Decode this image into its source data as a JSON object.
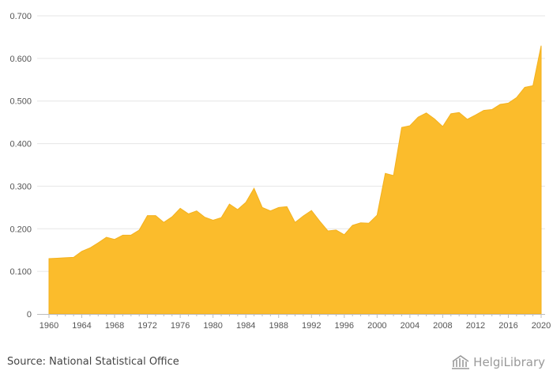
{
  "chart_data": {
    "type": "area",
    "color": "#FBBC2C",
    "ylim": [
      0,
      0.7
    ],
    "y_ticks": [
      "0",
      "0.100",
      "0.200",
      "0.300",
      "0.400",
      "0.500",
      "0.600",
      "0.700"
    ],
    "y_tick_values": [
      0,
      0.1,
      0.2,
      0.3,
      0.4,
      0.5,
      0.6,
      0.7
    ],
    "x_ticks": [
      "1960",
      "1964",
      "1968",
      "1972",
      "1976",
      "1980",
      "1984",
      "1988",
      "1992",
      "1996",
      "2000",
      "2004",
      "2008",
      "2012",
      "2016",
      "2020"
    ],
    "x": [
      1960,
      1961,
      1962,
      1963,
      1964,
      1965,
      1966,
      1967,
      1968,
      1969,
      1970,
      1971,
      1972,
      1973,
      1974,
      1975,
      1976,
      1977,
      1978,
      1979,
      1980,
      1981,
      1982,
      1983,
      1984,
      1985,
      1986,
      1987,
      1988,
      1989,
      1990,
      1991,
      1992,
      1993,
      1994,
      1995,
      1996,
      1997,
      1998,
      1999,
      2000,
      2001,
      2002,
      2003,
      2004,
      2005,
      2006,
      2007,
      2008,
      2009,
      2010,
      2011,
      2012,
      2013,
      2014,
      2015,
      2016,
      2017,
      2018,
      2019,
      2020
    ],
    "values": [
      0.13,
      0.131,
      0.132,
      0.133,
      0.147,
      0.155,
      0.167,
      0.18,
      0.175,
      0.185,
      0.185,
      0.197,
      0.231,
      0.231,
      0.215,
      0.228,
      0.248,
      0.235,
      0.242,
      0.227,
      0.22,
      0.226,
      0.258,
      0.245,
      0.262,
      0.295,
      0.25,
      0.242,
      0.25,
      0.252,
      0.215,
      0.23,
      0.243,
      0.218,
      0.195,
      0.197,
      0.186,
      0.208,
      0.214,
      0.213,
      0.232,
      0.33,
      0.325,
      0.438,
      0.442,
      0.462,
      0.472,
      0.458,
      0.44,
      0.47,
      0.473,
      0.457,
      0.467,
      0.478,
      0.48,
      0.492,
      0.495,
      0.508,
      0.532,
      0.536,
      0.63
    ],
    "grid": true,
    "legend": "none"
  },
  "footer": {
    "source": "Source: National Statistical Office",
    "brand": "HelgiLibrary",
    "brand_icon": "library-building-icon"
  }
}
